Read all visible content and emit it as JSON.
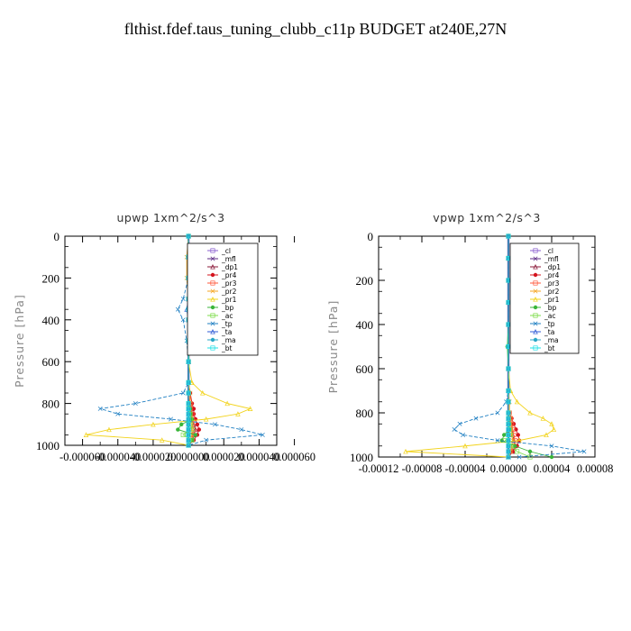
{
  "page_title": "flthist.fdef.taus_tuning_clubb_c11p  BUDGET at240E,27N",
  "colors": {
    "_cl": "#8a5fcf",
    "_mfl": "#5b2a86",
    "_dp1": "#8b1a3a",
    "_pr4": "#d4141e",
    "_pr3": "#ff5a3c",
    "_pr2": "#f5a623",
    "_pr1": "#f2d31b",
    "_bp": "#3ab53a",
    "_ac": "#7ddc4a",
    "_tp": "#1f7fc2",
    "_ta": "#2f5ad6",
    "_ma": "#2aa6c6",
    "_bt": "#1fe0e6",
    "frame": "#000000",
    "ylabel": "#888888"
  },
  "chart_data": [
    {
      "type": "line",
      "title": "upwp   1xm^2/s^3",
      "ylabel": "Pressure [hPa]",
      "xlabel": "",
      "ylim": [
        1000,
        0
      ],
      "yticks": [
        "0",
        "200",
        "400",
        "600",
        "800",
        "1000"
      ],
      "xticks": [
        "-0.000060",
        "-0.000040",
        "-0.000020",
        "0.000000",
        "0.000020",
        "0.000040",
        "0.000060"
      ],
      "xlim": [
        -7e-05,
        5e-05
      ],
      "legend": [
        "_cl",
        "_mfl",
        "_dp1",
        "_pr4",
        "_pr3",
        "_pr2",
        "_pr1",
        "_bp",
        "_ac",
        "_tp",
        "_ta",
        "_ma",
        "_bt"
      ],
      "legend_position": "top-right",
      "levels": [
        0,
        100,
        200,
        300,
        350,
        400,
        500,
        600,
        700,
        750,
        800,
        825,
        850,
        875,
        900,
        925,
        950,
        975,
        1000
      ],
      "series": [
        {
          "name": "_cl",
          "values": [
            0,
            0,
            0,
            0,
            0,
            0,
            0,
            0,
            0,
            0,
            0,
            0,
            0,
            0,
            0,
            0,
            0,
            0,
            0
          ]
        },
        {
          "name": "_mfl",
          "values": [
            0,
            0,
            0,
            0,
            0,
            0,
            0,
            0,
            0,
            0,
            0,
            0,
            0,
            0,
            0,
            0,
            0,
            0,
            0
          ]
        },
        {
          "name": "_dp1",
          "values": [
            0,
            0,
            0,
            5e-07,
            1e-06,
            1e-06,
            0,
            0,
            0,
            0,
            1e-06,
            2e-06,
            2e-06,
            2e-06,
            3e-06,
            4e-06,
            3e-06,
            2e-06,
            0
          ]
        },
        {
          "name": "_pr4",
          "values": [
            0,
            0,
            0,
            1e-06,
            2e-06,
            2e-06,
            1e-06,
            0,
            0,
            1e-06,
            2e-06,
            3e-06,
            3e-06,
            4e-06,
            5e-06,
            6e-06,
            5e-06,
            3e-06,
            0
          ]
        },
        {
          "name": "_pr3",
          "values": [
            0,
            0,
            0,
            0,
            1e-06,
            1e-06,
            0,
            0,
            0,
            0,
            1e-06,
            1e-06,
            2e-06,
            2e-06,
            2e-06,
            3e-06,
            2e-06,
            1e-06,
            0
          ]
        },
        {
          "name": "_pr2",
          "values": [
            0,
            -1e-06,
            -1e-06,
            0,
            0,
            0,
            0,
            0,
            0,
            1e-06,
            1e-06,
            1e-06,
            1e-06,
            2e-06,
            2e-06,
            2e-06,
            2e-06,
            1e-06,
            0
          ]
        },
        {
          "name": "_pr1",
          "values": [
            0,
            0,
            0,
            0,
            0,
            0,
            0,
            0,
            2e-06,
            8e-06,
            2.2e-05,
            3.5e-05,
            2.8e-05,
            1e-05,
            -2e-05,
            -4.5e-05,
            -5.8e-05,
            -1.5e-05,
            0
          ]
        },
        {
          "name": "_bp",
          "values": [
            0,
            0,
            0,
            2e-06,
            4e-06,
            3e-06,
            1e-06,
            0,
            0,
            0,
            0,
            1e-06,
            1e-06,
            2e-06,
            -4e-06,
            -6e-06,
            4e-06,
            2e-06,
            0
          ]
        },
        {
          "name": "_ac",
          "values": [
            0,
            0,
            0,
            1e-06,
            3e-06,
            2e-06,
            1e-06,
            0,
            0,
            0,
            0,
            0,
            1e-06,
            1e-06,
            1e-06,
            2e-06,
            -3e-06,
            2e-06,
            0
          ]
        },
        {
          "name": "_tp",
          "values": [
            0,
            0,
            0,
            -3e-06,
            -6e-06,
            -3e-06,
            -1e-06,
            0,
            0,
            -3e-06,
            -3e-05,
            -5e-05,
            -4e-05,
            -1e-05,
            1.5e-05,
            3e-05,
            4.2e-05,
            1e-05,
            0
          ]
        },
        {
          "name": "_ta",
          "values": [
            0,
            0,
            0,
            0,
            -1e-06,
            0,
            0,
            0,
            0,
            0,
            0,
            0,
            0,
            0,
            0,
            0,
            0,
            0,
            0
          ]
        },
        {
          "name": "_ma",
          "values": [
            0,
            0,
            0,
            0,
            0,
            0,
            0,
            0,
            0,
            0,
            0,
            0,
            0,
            0,
            0,
            0,
            0,
            0,
            0
          ]
        },
        {
          "name": "_bt",
          "values": [
            0,
            0,
            0,
            0,
            0,
            0,
            0,
            0,
            0,
            0,
            0,
            0,
            0,
            0,
            0,
            0,
            0,
            0,
            0
          ]
        }
      ]
    },
    {
      "type": "line",
      "title": "vpwp   1xm^2/s^3",
      "ylabel": "Pressure [hPa]",
      "xlabel": "",
      "ylim": [
        1000,
        0
      ],
      "yticks": [
        "0",
        "200",
        "400",
        "600",
        "800",
        "1000"
      ],
      "xticks": [
        "-0.00012",
        "-0.00008",
        "-0.00004",
        "0.00000",
        "0.00004",
        "0.00008"
      ],
      "xlim": [
        -0.00012,
        8e-05
      ],
      "legend": [
        "_cl",
        "_mfl",
        "_dp1",
        "_pr4",
        "_pr3",
        "_pr2",
        "_pr1",
        "_bp",
        "_ac",
        "_tp",
        "_ta",
        "_ma",
        "_bt"
      ],
      "legend_position": "top-right",
      "levels": [
        0,
        100,
        200,
        300,
        400,
        500,
        600,
        700,
        750,
        800,
        825,
        850,
        875,
        900,
        925,
        950,
        975,
        1000
      ],
      "series": [
        {
          "name": "_cl",
          "values": [
            0,
            0,
            0,
            0,
            0,
            0,
            0,
            0,
            0,
            0,
            0,
            0,
            0,
            0,
            0,
            0,
            0,
            0
          ]
        },
        {
          "name": "_mfl",
          "values": [
            0,
            0,
            0,
            0,
            0,
            0,
            0,
            0,
            0,
            0,
            0,
            0,
            0,
            0,
            0,
            0,
            0,
            0
          ]
        },
        {
          "name": "_dp1",
          "values": [
            0,
            0,
            0,
            0,
            0,
            0,
            0,
            0,
            0,
            0,
            1e-06,
            2e-06,
            3e-06,
            4e-06,
            5e-06,
            6e-06,
            4e-06,
            0
          ]
        },
        {
          "name": "_pr4",
          "values": [
            0,
            0,
            0,
            0,
            0,
            0,
            0,
            0,
            0,
            1e-06,
            3e-06,
            5e-06,
            7e-06,
            9e-06,
            1e-05,
            8e-06,
            4e-06,
            0
          ]
        },
        {
          "name": "_pr3",
          "values": [
            0,
            0,
            0,
            0,
            0,
            0,
            0,
            0,
            0,
            1e-06,
            2e-06,
            3e-06,
            4e-06,
            5e-06,
            6e-06,
            5e-06,
            2e-06,
            0
          ]
        },
        {
          "name": "_pr2",
          "values": [
            0,
            0,
            0,
            0,
            0,
            0,
            0,
            0,
            1e-06,
            1e-06,
            2e-06,
            2e-06,
            3e-06,
            3e-06,
            4e-06,
            3e-06,
            2e-06,
            0
          ]
        },
        {
          "name": "_pr1",
          "values": [
            0,
            0,
            0,
            0,
            0,
            0,
            0,
            2e-06,
            8e-06,
            2e-05,
            3.2e-05,
            4e-05,
            4.2e-05,
            3.5e-05,
            1e-05,
            -4e-05,
            -9.5e-05,
            0
          ]
        },
        {
          "name": "_bp",
          "values": [
            0,
            0,
            0,
            0,
            0,
            -1e-06,
            0,
            0,
            0,
            0,
            0,
            1e-06,
            1e-06,
            -4e-06,
            -6e-06,
            6e-06,
            2e-05,
            4e-05
          ]
        },
        {
          "name": "_ac",
          "values": [
            0,
            0,
            0,
            0,
            0,
            0,
            0,
            0,
            0,
            0,
            0,
            0,
            1e-06,
            2e-06,
            -3e-06,
            3e-06,
            8e-06,
            2e-05
          ]
        },
        {
          "name": "_tp",
          "values": [
            0,
            0,
            0,
            0,
            0,
            0,
            0,
            0,
            -2e-06,
            -1e-05,
            -3e-05,
            -4.5e-05,
            -5e-05,
            -4.2e-05,
            -1e-05,
            4e-05,
            7e-05,
            1e-05
          ]
        },
        {
          "name": "_ta",
          "values": [
            0,
            0,
            0,
            0,
            0,
            0,
            0,
            0,
            0,
            0,
            0,
            0,
            0,
            0,
            0,
            0,
            0,
            0
          ]
        },
        {
          "name": "_ma",
          "values": [
            0,
            0,
            0,
            0,
            0,
            0,
            0,
            0,
            0,
            0,
            0,
            0,
            0,
            0,
            0,
            0,
            0,
            0
          ]
        },
        {
          "name": "_bt",
          "values": [
            0,
            0,
            0,
            0,
            0,
            0,
            0,
            0,
            0,
            0,
            0,
            0,
            0,
            0,
            0,
            0,
            0,
            0
          ]
        }
      ]
    }
  ]
}
